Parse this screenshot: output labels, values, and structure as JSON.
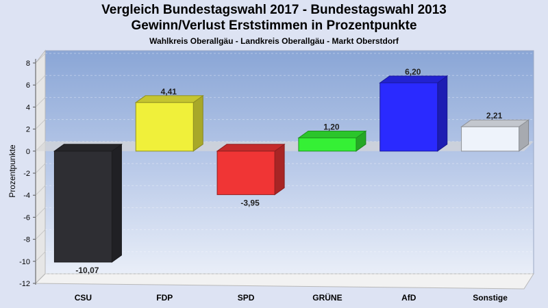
{
  "header": {
    "title_line1": "Vergleich Bundestagswahl 2017 - Bundestagswahl 2013",
    "title_line2": "Gewinn/Verlust Erststimmen in Prozentpunkte",
    "subtitle": "Wahlkreis Oberallgäu - Landkreis Oberallgäu - Markt Oberstdorf"
  },
  "chart_data": {
    "type": "bar",
    "title": "Vergleich Bundestagswahl 2017 - Bundestagswahl 2013 / Gewinn/Verlust Erststimmen in Prozentpunkte",
    "subtitle": "Wahlkreis Oberallgäu - Landkreis Oberallgäu - Markt Oberstdorf",
    "ylabel": "Prozentpunkte",
    "xlabel": "",
    "ylim": [
      -12,
      8
    ],
    "yticks": [
      8,
      6,
      4,
      2,
      0,
      -2,
      -4,
      -6,
      -8,
      -10,
      -12
    ],
    "grid": true,
    "categories": [
      "CSU",
      "FDP",
      "SPD",
      "GRÜNE",
      "AfD",
      "Sonstige"
    ],
    "values": [
      -10.07,
      4.41,
      -3.95,
      1.2,
      6.2,
      2.21
    ],
    "value_labels": [
      "-10,07",
      "4,41",
      "-3,95",
      "1,20",
      "6,20",
      "2,21"
    ],
    "colors": [
      "#2e2e33",
      "#f0f03a",
      "#f03535",
      "#35f035",
      "#2a2aff",
      "#eef3fb"
    ]
  }
}
